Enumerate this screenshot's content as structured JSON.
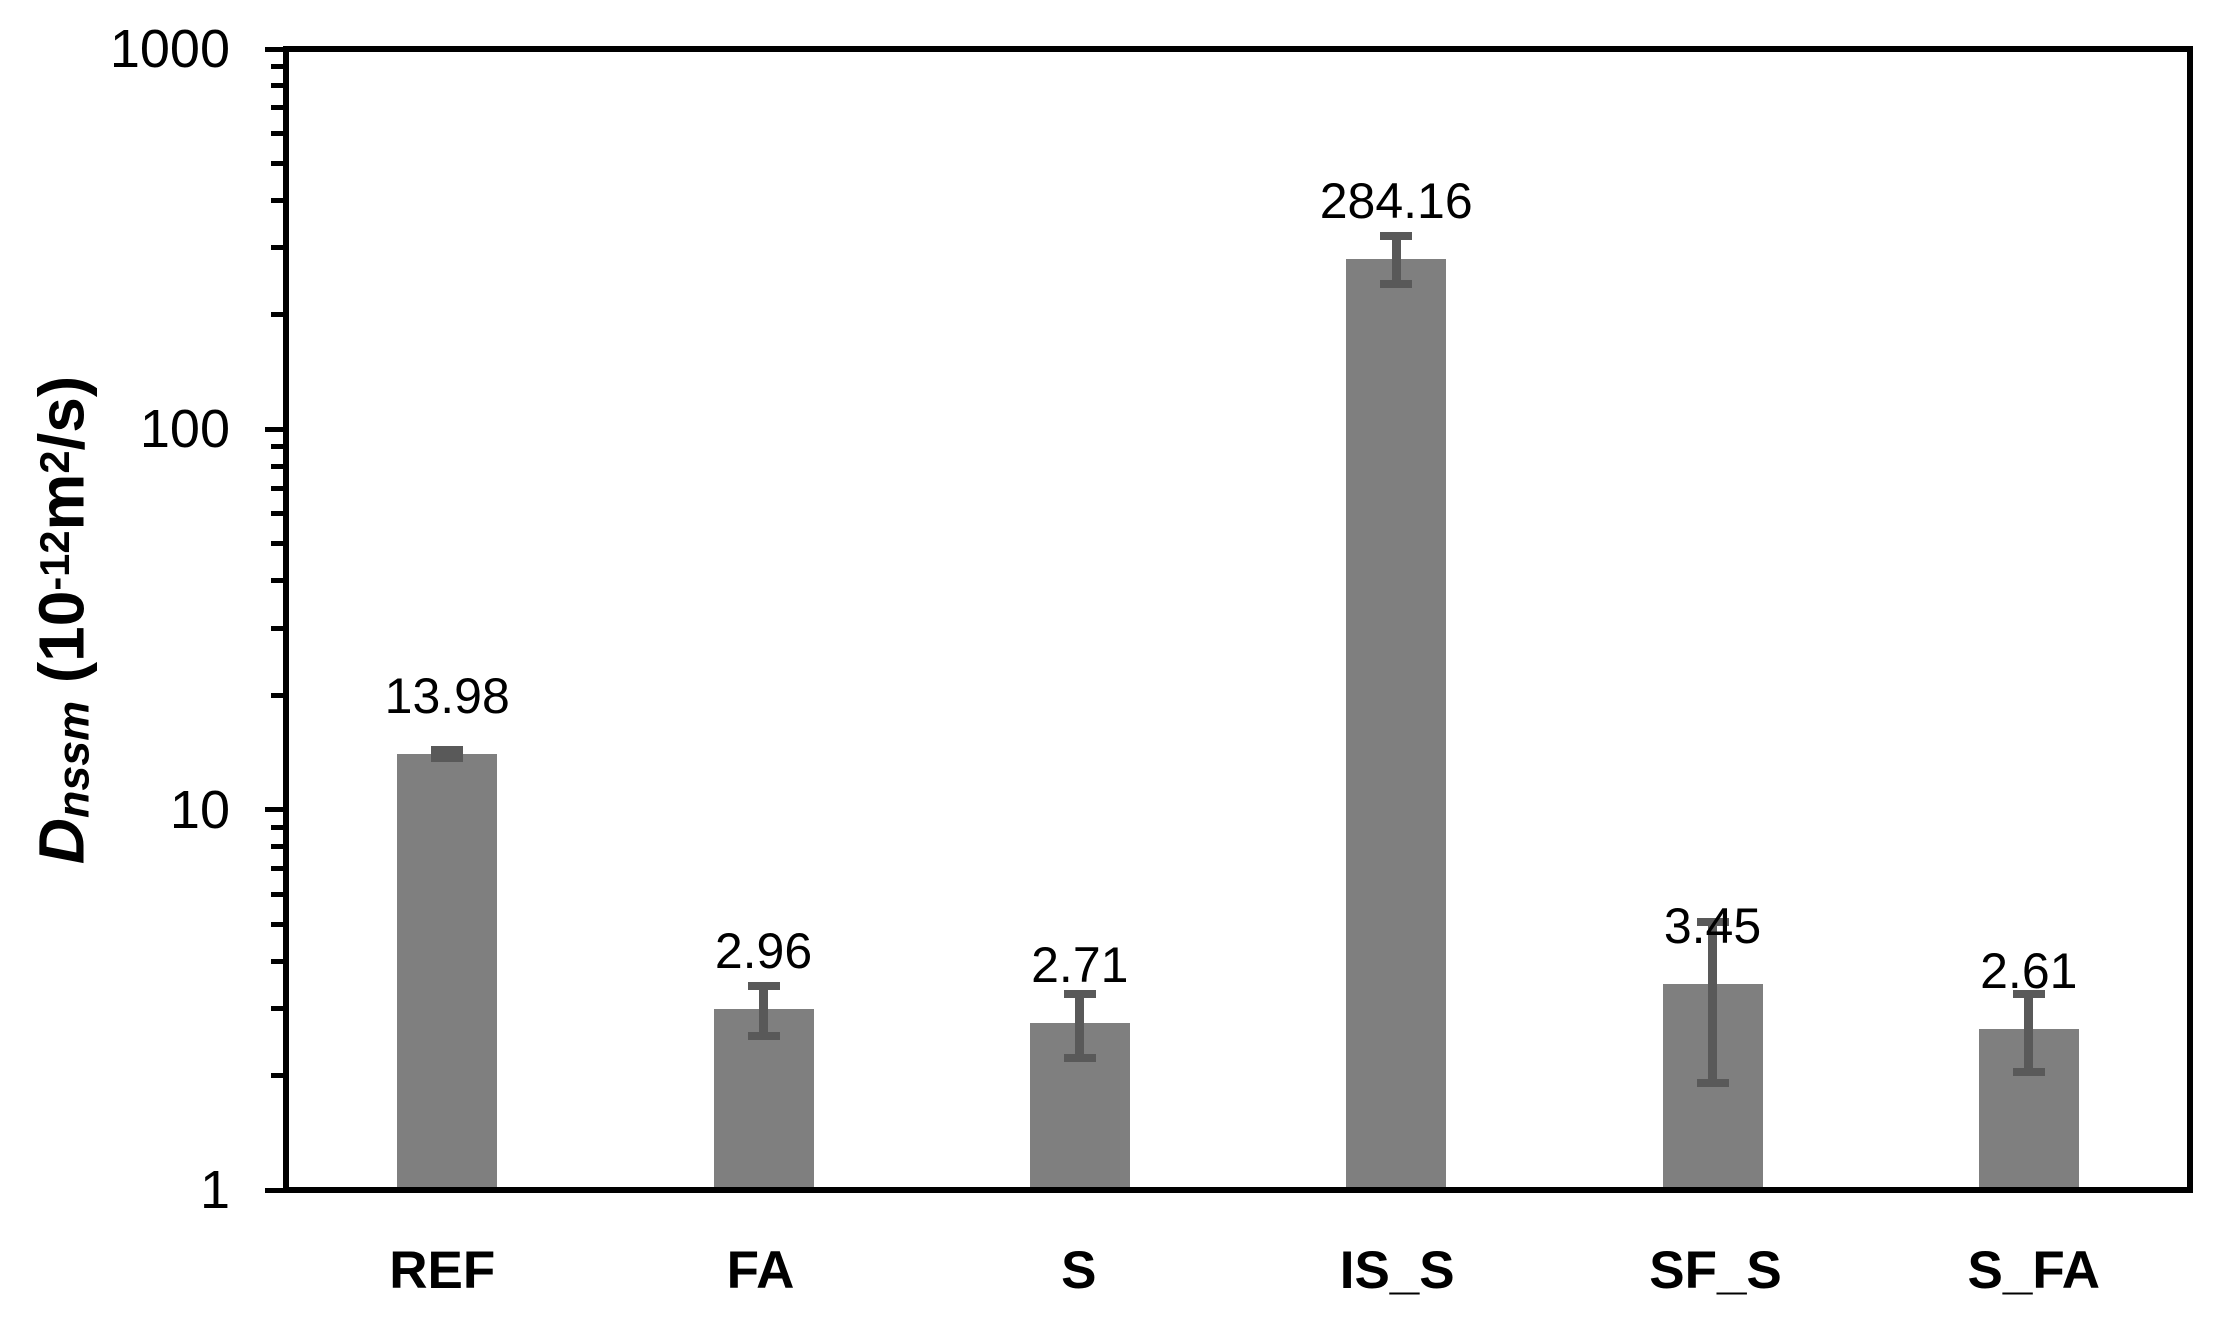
{
  "chart_data": {
    "type": "bar",
    "title": "",
    "categories": [
      "REF",
      "FA",
      "S",
      "IS_S",
      "SF_S",
      "S_FA"
    ],
    "values": [
      13.98,
      2.96,
      2.71,
      284.16,
      3.45,
      2.61
    ],
    "value_labels": [
      "13.98",
      "2.96",
      "2.71",
      "284.16",
      "3.45",
      "2.61"
    ],
    "error_high": [
      14.3,
      3.4,
      3.24,
      326,
      5.02,
      3.24
    ],
    "error_low": [
      13.6,
      2.51,
      2.2,
      244,
      1.88,
      2.01
    ],
    "y_axis": {
      "scale": "log",
      "min": 1,
      "max": 1000,
      "major_ticks": [
        1,
        10,
        100,
        1000
      ],
      "tick_labels": [
        "1",
        "10",
        "100",
        "1000"
      ]
    },
    "x_axis": {
      "ticks": "none"
    },
    "ylabel_parts": {
      "symbol": "D",
      "subscript": "nssm",
      "open": " (10",
      "exponent": "-12",
      "unit_m": "m",
      "unit_sq": "2",
      "close": "/s)"
    },
    "legend": "none",
    "grid": "off",
    "colors": {
      "bar": "#7F7F7F",
      "error_bar": "#595959",
      "axis": "#000000",
      "text": "#000000",
      "background": "#FFFFFF"
    }
  }
}
